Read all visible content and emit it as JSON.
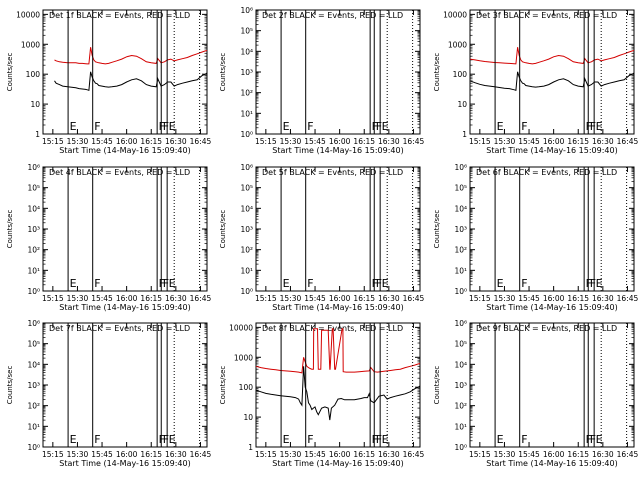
{
  "time_ticks": [
    "15:15",
    "15:30",
    "15:45",
    "16:00",
    "16:15",
    "16:30",
    "16:45"
  ],
  "xlabel": "Start Time (14-May-16 15:09:40)",
  "ylabel": "Counts/sec",
  "colors": {
    "events": "#000000",
    "lld": "#d40000",
    "frame": "#000000"
  },
  "flag_markers": [
    {
      "t": 15.3,
      "label": "E"
    },
    {
      "t": 30.3,
      "label": "F"
    },
    {
      "t": 69.6,
      "label": "F"
    },
    {
      "t": 72.1,
      "label": "F"
    },
    {
      "t": 75.7,
      "label": "E"
    }
  ],
  "dotted_markers": [
    80.0,
    95.5
  ],
  "chart_data": [
    {
      "type": "line",
      "title": "Det 1f BLACK = Events, RED = LLD",
      "yscale": "log",
      "ylim": [
        1,
        14000
      ],
      "ytick_labels": [
        "1",
        "10",
        "100",
        "1000",
        "10000"
      ],
      "series": [
        {
          "name": "Events",
          "x": [
            7,
            8,
            10,
            12,
            15,
            20,
            22,
            24,
            26,
            27,
            28,
            29,
            30,
            31,
            32,
            33,
            34,
            36,
            38,
            40,
            42,
            45,
            48,
            51,
            54,
            57,
            60,
            63,
            66,
            69,
            70,
            72,
            74,
            76,
            78,
            80,
            82,
            85,
            88,
            91,
            94,
            97,
            99,
            100
          ],
          "y": [
            60,
            50,
            45,
            40,
            38,
            35,
            33,
            32,
            31,
            30,
            29,
            120,
            80,
            60,
            50,
            48,
            42,
            40,
            38,
            37,
            38,
            40,
            45,
            55,
            65,
            70,
            60,
            45,
            40,
            38,
            70,
            40,
            45,
            55,
            55,
            40,
            45,
            50,
            55,
            60,
            65,
            90,
            100,
            110
          ]
        },
        {
          "name": "LLD",
          "x": [
            7,
            8,
            10,
            12,
            15,
            20,
            22,
            24,
            26,
            27,
            28,
            29,
            30,
            31,
            32,
            33,
            34,
            36,
            38,
            40,
            42,
            45,
            48,
            51,
            54,
            57,
            60,
            63,
            66,
            69,
            70,
            72,
            74,
            76,
            78,
            80,
            82,
            85,
            88,
            91,
            94,
            97,
            99,
            100
          ],
          "y": [
            300,
            280,
            260,
            250,
            240,
            240,
            230,
            230,
            225,
            220,
            220,
            800,
            420,
            300,
            260,
            250,
            240,
            230,
            220,
            230,
            250,
            280,
            320,
            380,
            420,
            400,
            330,
            260,
            240,
            230,
            330,
            240,
            260,
            300,
            320,
            280,
            300,
            330,
            360,
            420,
            480,
            550,
            600,
            620
          ]
        }
      ]
    },
    {
      "type": "line",
      "title": "Det 2f BLACK = Events, RED = LLD",
      "yscale": "log",
      "ylim": [
        1,
        1000000
      ],
      "ytick_labels": [
        "10⁰",
        "10¹",
        "10²",
        "10³",
        "10⁴",
        "10⁵",
        "10⁶"
      ],
      "series": []
    },
    {
      "type": "line",
      "title": "Det 3f BLACK = Events, RED = LLD",
      "yscale": "log",
      "ylim": [
        1,
        14000
      ],
      "ytick_labels": [
        "1",
        "10",
        "100",
        "1000",
        "10000"
      ],
      "series": [
        {
          "name": "Events",
          "x": [
            0,
            3,
            6,
            9,
            12,
            15,
            18,
            21,
            24,
            27,
            28,
            29,
            30,
            31,
            32,
            33,
            34,
            36,
            38,
            40,
            42,
            45,
            48,
            51,
            54,
            57,
            60,
            63,
            66,
            69,
            70,
            72,
            74,
            76,
            78,
            80,
            82,
            85,
            88,
            91,
            94,
            97,
            99,
            100
          ],
          "y": [
            60,
            52,
            46,
            42,
            40,
            38,
            36,
            34,
            33,
            30,
            29,
            120,
            80,
            60,
            50,
            48,
            42,
            40,
            38,
            37,
            38,
            40,
            45,
            55,
            65,
            70,
            60,
            45,
            40,
            38,
            70,
            40,
            45,
            55,
            55,
            40,
            45,
            50,
            55,
            60,
            65,
            90,
            100,
            110
          ]
        },
        {
          "name": "LLD",
          "x": [
            0,
            3,
            6,
            9,
            12,
            15,
            18,
            21,
            24,
            27,
            28,
            29,
            30,
            31,
            32,
            33,
            34,
            36,
            38,
            40,
            42,
            45,
            48,
            51,
            54,
            57,
            60,
            63,
            66,
            69,
            70,
            72,
            74,
            76,
            78,
            80,
            82,
            85,
            88,
            91,
            94,
            97,
            99,
            100
          ],
          "y": [
            320,
            300,
            280,
            265,
            255,
            245,
            240,
            235,
            230,
            222,
            220,
            800,
            420,
            300,
            260,
            250,
            240,
            230,
            220,
            230,
            250,
            280,
            320,
            380,
            420,
            400,
            330,
            260,
            240,
            230,
            330,
            240,
            260,
            300,
            320,
            280,
            300,
            330,
            360,
            420,
            480,
            550,
            600,
            620
          ]
        }
      ]
    },
    {
      "type": "line",
      "title": "Det 4f BLACK = Events, RED = LLD",
      "yscale": "log",
      "ylim": [
        1,
        1000000
      ],
      "ytick_labels": [
        "10⁰",
        "10¹",
        "10²",
        "10³",
        "10⁴",
        "10⁵",
        "10⁶"
      ],
      "series": []
    },
    {
      "type": "line",
      "title": "Det 5f BLACK = Events, RED = LLD",
      "yscale": "log",
      "ylim": [
        1,
        1000000
      ],
      "ytick_labels": [
        "10⁰",
        "10¹",
        "10²",
        "10³",
        "10⁴",
        "10⁵",
        "10⁶"
      ],
      "series": []
    },
    {
      "type": "line",
      "title": "Det 6f BLACK = Events, RED = LLD",
      "yscale": "log",
      "ylim": [
        1,
        1000000
      ],
      "ytick_labels": [
        "10⁰",
        "10¹",
        "10²",
        "10³",
        "10⁴",
        "10⁵",
        "10⁶"
      ],
      "series": []
    },
    {
      "type": "line",
      "title": "Det 7f BLACK = Events, RED = LLD",
      "yscale": "log",
      "ylim": [
        1,
        1000000
      ],
      "ytick_labels": [
        "10⁰",
        "10¹",
        "10²",
        "10³",
        "10⁴",
        "10⁵",
        "10⁶"
      ],
      "series": []
    },
    {
      "type": "line",
      "title": "Det 8f BLACK = Events, RED = LLD",
      "yscale": "log",
      "ylim": [
        1,
        14000
      ],
      "ytick_labels": [
        "1",
        "10",
        "100",
        "1000",
        "10000"
      ],
      "series": [
        {
          "name": "Events",
          "x": [
            0,
            3,
            6,
            9,
            12,
            15,
            18,
            21,
            24,
            26,
            27,
            28,
            29,
            30,
            31,
            32,
            33,
            34,
            35,
            36,
            37,
            38,
            40,
            42,
            44,
            45,
            46,
            48,
            50,
            52,
            54,
            56,
            58,
            60,
            62,
            64,
            66,
            68,
            69,
            70,
            72,
            75,
            78,
            80,
            82,
            85,
            88,
            91,
            94,
            97,
            99,
            100
          ],
          "y": [
            80,
            70,
            62,
            58,
            55,
            52,
            50,
            48,
            45,
            40,
            30,
            25,
            500,
            100,
            70,
            30,
            25,
            18,
            20,
            22,
            15,
            12,
            20,
            22,
            20,
            8,
            20,
            25,
            40,
            42,
            38,
            38,
            38,
            38,
            40,
            42,
            45,
            45,
            60,
            35,
            30,
            50,
            55,
            40,
            45,
            50,
            55,
            60,
            70,
            90,
            100,
            110
          ]
        },
        {
          "name": "LLD",
          "x": [
            0,
            3,
            6,
            9,
            12,
            15,
            18,
            21,
            24,
            26,
            27,
            28,
            29,
            30,
            31,
            32,
            33,
            34,
            35,
            35.2,
            37.5,
            38,
            39.5,
            40,
            44,
            45,
            45.2,
            46.5,
            47,
            48,
            48.5,
            52.5,
            53,
            53.2,
            55,
            58,
            60,
            63,
            66,
            69,
            70,
            72,
            74,
            76,
            78,
            80,
            82,
            85,
            88,
            91,
            94,
            97,
            99,
            100
          ],
          "y": [
            500,
            450,
            420,
            400,
            380,
            360,
            350,
            340,
            330,
            320,
            310,
            300,
            1000,
            700,
            500,
            450,
            420,
            400,
            400,
            9000,
            9000,
            400,
            400,
            8000,
            8000,
            400,
            400,
            9000,
            9000,
            400,
            400,
            9000,
            9000,
            330,
            320,
            320,
            320,
            330,
            340,
            350,
            450,
            330,
            320,
            330,
            340,
            350,
            360,
            380,
            400,
            450,
            500,
            550,
            600,
            620
          ]
        }
      ]
    },
    {
      "type": "line",
      "title": "Det 9f BLACK = Events, RED = LLD",
      "yscale": "log",
      "ylim": [
        1,
        1000000
      ],
      "ytick_labels": [
        "10⁰",
        "10¹",
        "10²",
        "10³",
        "10⁴",
        "10⁵",
        "10⁶"
      ],
      "series": []
    }
  ]
}
